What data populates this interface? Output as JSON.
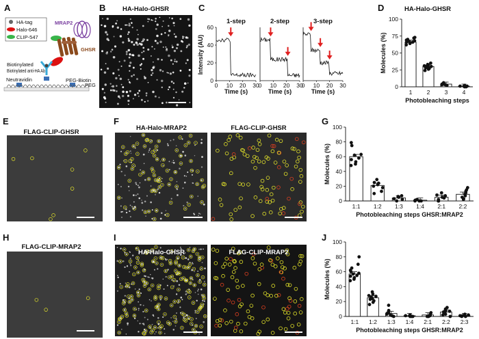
{
  "panel_letters": [
    "A",
    "B",
    "C",
    "D",
    "E",
    "F",
    "G",
    "H",
    "I",
    "J"
  ],
  "panelA": {
    "legend": [
      "HA-tag",
      "Halo-646",
      "CLIP-547"
    ],
    "labels": {
      "mrap2": "MRAP2",
      "ghsr": "GHSR",
      "antibody": "Biotinylated anti-HA Ab",
      "neutravidin": "Neutravidin",
      "peg_biotin": "PEG-Biotin",
      "peg": "PEG"
    }
  },
  "panelB": {
    "title": "HA-Halo-GHSR"
  },
  "panelC": {
    "ylabel": "Intensity (AU)",
    "xlabel": "Time (s)",
    "ymax": 60,
    "yticks": [
      0,
      20,
      40,
      60
    ],
    "xticks": [
      0,
      10,
      20,
      30
    ],
    "traces": [
      {
        "title": "1-step",
        "steps": [
          [
            0,
            46
          ],
          [
            11,
            6
          ]
        ],
        "arrows": [
          11
        ]
      },
      {
        "title": "2-step",
        "steps": [
          [
            0,
            46
          ],
          [
            8,
            24
          ],
          [
            21,
            6
          ]
        ],
        "arrows": [
          8,
          21
        ]
      },
      {
        "title": "3-step",
        "steps": [
          [
            0,
            52
          ],
          [
            6,
            34
          ],
          [
            13,
            20
          ],
          [
            20,
            8
          ]
        ],
        "arrows": [
          6,
          13,
          20
        ]
      }
    ]
  },
  "panelD": {
    "title": "HA-Halo-GHSR",
    "chart_data": {
      "type": "bar",
      "categories": [
        "1",
        "2",
        "3",
        "4"
      ],
      "values": [
        66,
        30,
        4,
        1
      ],
      "xlabel": "Photobleaching steps",
      "ylabel": "Molecules (%)",
      "ylim": [
        0,
        100
      ],
      "yticks": [
        0,
        25,
        50,
        75,
        100
      ],
      "points": [
        [
          62,
          64,
          65,
          66,
          66,
          67,
          68,
          68,
          69,
          70,
          72,
          73
        ],
        [
          24,
          26,
          27,
          28,
          29,
          30,
          30,
          31,
          32,
          33,
          35
        ],
        [
          2,
          3,
          3,
          4,
          4,
          5,
          5,
          6
        ],
        [
          0,
          0,
          1,
          1,
          1,
          1,
          2
        ]
      ]
    }
  },
  "panelE": {
    "title": "FLAG-CLIP-GHSR"
  },
  "panelF": {
    "titles": [
      "HA-Halo-MRAP2",
      "FLAG-CLIP-GHSR"
    ]
  },
  "panelG": {
    "chart_data": {
      "type": "bar",
      "categories": [
        "1:1",
        "1:2",
        "1:3",
        "1:4",
        "2:1",
        "2:2"
      ],
      "values": [
        60,
        21,
        4,
        1,
        5,
        9
      ],
      "xlabel": "Photobleaching steps GHSR:MRAP2",
      "ylabel": "Molecules (%)",
      "ylim": [
        0,
        100
      ],
      "yticks": [
        0,
        20,
        40,
        60,
        80,
        100
      ],
      "points": [
        [
          48,
          50,
          53,
          56,
          58,
          62,
          63,
          75,
          79
        ],
        [
          10,
          13,
          18,
          20,
          22,
          24,
          25,
          29
        ],
        [
          0,
          2,
          3,
          5,
          6,
          7
        ],
        [
          0,
          0,
          0,
          1,
          2
        ],
        [
          0,
          0,
          2,
          4,
          5,
          7,
          8,
          11
        ],
        [
          2,
          3,
          5,
          7,
          9,
          11,
          13,
          15,
          18
        ]
      ]
    }
  },
  "panelH": {
    "title": "FLAG-CLIP-MRAP2"
  },
  "panelI": {
    "titles": [
      "HA-Halo-GHSR",
      "FLAG-CLIP-MRAP2"
    ]
  },
  "panelJ": {
    "chart_data": {
      "type": "bar",
      "categories": [
        "1:1",
        "1:2",
        "1:3",
        "1:4",
        "2:1",
        "2:2",
        "2:3"
      ],
      "values": [
        57,
        25,
        4,
        1,
        2,
        6,
        1
      ],
      "xlabel": "Photobleaching steps GHSR:MRAP2",
      "ylabel": "Molecules (%)",
      "ylim": [
        0,
        100
      ],
      "yticks": [
        0,
        20,
        40,
        60,
        80,
        100
      ],
      "points": [
        [
          48,
          50,
          52,
          54,
          55,
          57,
          58,
          60,
          62,
          65,
          70,
          80
        ],
        [
          16,
          19,
          21,
          23,
          24,
          26,
          27,
          28,
          30,
          33
        ],
        [
          0,
          1,
          2,
          3,
          4,
          5,
          6,
          8,
          15
        ],
        [
          0,
          0,
          0,
          1,
          1,
          2
        ],
        [
          0,
          0,
          1,
          1,
          2,
          3,
          5
        ],
        [
          0,
          2,
          3,
          5,
          6,
          7,
          8,
          10,
          12
        ],
        [
          0,
          0,
          1,
          1,
          2,
          3
        ]
      ]
    }
  }
}
